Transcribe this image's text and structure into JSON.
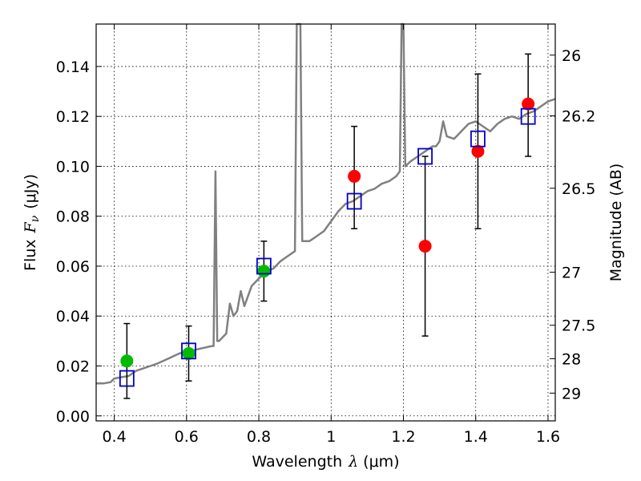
{
  "chart_data": {
    "type": "scatter",
    "xlabel_prefix": "Wavelength",
    "xlabel_unit": "(μm)",
    "ylabel_prefix": "Flux",
    "ylabel_unit": "(μJy)",
    "y2label": "Magnitude (AB)",
    "xlim": [
      0.35,
      1.62
    ],
    "ylim": [
      -0.002,
      0.157
    ],
    "grid": true,
    "x_ticks": [
      0.4,
      0.6,
      0.8,
      1.0,
      1.2,
      1.4,
      1.6
    ],
    "x_tick_labels": [
      "0.4",
      "0.6",
      "0.8",
      "1",
      "1.2",
      "1.4",
      "1.6"
    ],
    "y_ticks": [
      0.0,
      0.02,
      0.04,
      0.06,
      0.08,
      0.1,
      0.12,
      0.14
    ],
    "y_tick_labels": [
      "0.00",
      "0.02",
      "0.04",
      "0.06",
      "0.08",
      "0.10",
      "0.12",
      "0.14"
    ],
    "y2_ticks": [
      26,
      26.2,
      26.5,
      27,
      27.5,
      28,
      29
    ],
    "y2_tick_labels": [
      "26",
      "26.2",
      "26.5",
      "27",
      "27.5",
      "28",
      "29"
    ],
    "colors": {
      "sed_line": "#808080",
      "green_points": "#00bb00",
      "red_points": "#ff0000",
      "model_boxes": "#0000cc",
      "errorbars": "#000000"
    },
    "model_spectrum": [
      [
        0.35,
        0.013
      ],
      [
        0.37,
        0.013
      ],
      [
        0.39,
        0.0135
      ],
      [
        0.4,
        0.015
      ],
      [
        0.42,
        0.0155
      ],
      [
        0.44,
        0.016
      ],
      [
        0.46,
        0.018
      ],
      [
        0.48,
        0.019
      ],
      [
        0.5,
        0.02
      ],
      [
        0.52,
        0.021
      ],
      [
        0.55,
        0.023
      ],
      [
        0.58,
        0.025
      ],
      [
        0.61,
        0.026
      ],
      [
        0.64,
        0.027
      ],
      [
        0.67,
        0.028
      ],
      [
        0.675,
        0.028
      ],
      [
        0.68,
        0.098
      ],
      [
        0.685,
        0.03
      ],
      [
        0.69,
        0.03
      ],
      [
        0.71,
        0.033
      ],
      [
        0.72,
        0.045
      ],
      [
        0.73,
        0.04
      ],
      [
        0.74,
        0.042
      ],
      [
        0.75,
        0.05
      ],
      [
        0.76,
        0.044
      ],
      [
        0.78,
        0.052
      ],
      [
        0.8,
        0.055
      ],
      [
        0.82,
        0.058
      ],
      [
        0.84,
        0.059
      ],
      [
        0.86,
        0.062
      ],
      [
        0.88,
        0.064
      ],
      [
        0.9,
        0.066
      ],
      [
        0.905,
        0.157
      ],
      [
        0.915,
        0.157
      ],
      [
        0.92,
        0.07
      ],
      [
        0.94,
        0.07
      ],
      [
        0.96,
        0.072
      ],
      [
        0.98,
        0.074
      ],
      [
        1.0,
        0.078
      ],
      [
        1.02,
        0.082
      ],
      [
        1.04,
        0.085
      ],
      [
        1.06,
        0.086
      ],
      [
        1.08,
        0.088
      ],
      [
        1.1,
        0.09
      ],
      [
        1.12,
        0.091
      ],
      [
        1.14,
        0.093
      ],
      [
        1.16,
        0.094
      ],
      [
        1.18,
        0.096
      ],
      [
        1.19,
        0.098
      ],
      [
        1.195,
        0.157
      ],
      [
        1.2,
        0.157
      ],
      [
        1.205,
        0.1
      ],
      [
        1.22,
        0.102
      ],
      [
        1.24,
        0.104
      ],
      [
        1.26,
        0.106
      ],
      [
        1.28,
        0.108
      ],
      [
        1.29,
        0.108
      ],
      [
        1.3,
        0.11
      ],
      [
        1.31,
        0.118
      ],
      [
        1.32,
        0.112
      ],
      [
        1.34,
        0.111
      ],
      [
        1.36,
        0.114
      ],
      [
        1.38,
        0.117
      ],
      [
        1.4,
        0.118
      ],
      [
        1.42,
        0.116
      ],
      [
        1.44,
        0.114
      ],
      [
        1.46,
        0.117
      ],
      [
        1.48,
        0.119
      ],
      [
        1.5,
        0.12
      ],
      [
        1.52,
        0.119
      ],
      [
        1.54,
        0.121
      ],
      [
        1.56,
        0.122
      ],
      [
        1.58,
        0.124
      ],
      [
        1.6,
        0.126
      ],
      [
        1.62,
        0.127
      ]
    ],
    "series": [
      {
        "marker": "green-circle",
        "points": [
          {
            "x": 0.435,
            "y": 0.022
          },
          {
            "x": 0.606,
            "y": 0.025
          },
          {
            "x": 0.814,
            "y": 0.058
          }
        ]
      },
      {
        "marker": "red-circle",
        "points": [
          {
            "x": 1.064,
            "y": 0.096
          },
          {
            "x": 1.26,
            "y": 0.068
          },
          {
            "x": 1.406,
            "y": 0.106
          },
          {
            "x": 1.545,
            "y": 0.125
          }
        ]
      },
      {
        "marker": "blue-open-square",
        "points": [
          {
            "x": 0.435,
            "y": 0.015
          },
          {
            "x": 0.606,
            "y": 0.026
          },
          {
            "x": 0.814,
            "y": 0.06
          },
          {
            "x": 1.064,
            "y": 0.086
          },
          {
            "x": 1.26,
            "y": 0.104
          },
          {
            "x": 1.406,
            "y": 0.111
          },
          {
            "x": 1.545,
            "y": 0.12
          }
        ]
      }
    ],
    "errorbars": [
      {
        "x": 0.435,
        "low": 0.007,
        "high": 0.037
      },
      {
        "x": 0.606,
        "low": 0.014,
        "high": 0.036
      },
      {
        "x": 0.814,
        "low": 0.046,
        "high": 0.07
      },
      {
        "x": 1.064,
        "low": 0.075,
        "high": 0.116
      },
      {
        "x": 1.26,
        "low": 0.032,
        "high": 0.104
      },
      {
        "x": 1.406,
        "low": 0.075,
        "high": 0.137
      },
      {
        "x": 1.545,
        "low": 0.104,
        "high": 0.145
      }
    ]
  }
}
